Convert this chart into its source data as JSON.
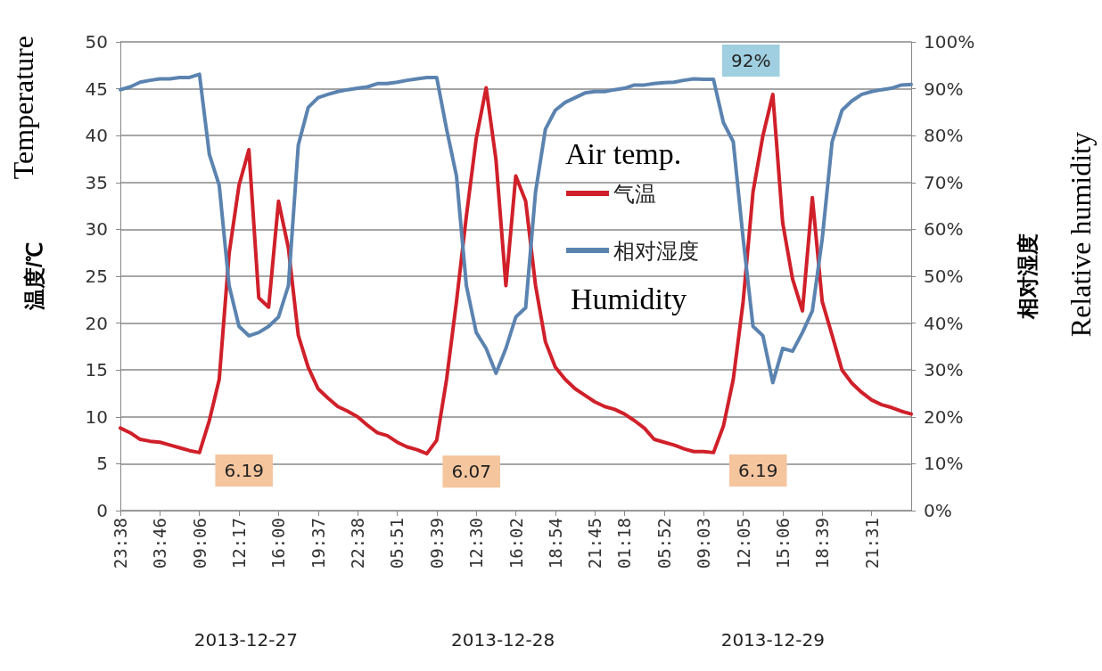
{
  "chart_data": {
    "type": "line",
    "ylabel": "温度/℃",
    "y2label": "相对湿度",
    "annotations": [
      "Temperature",
      "Relative humidity",
      "Air temp.",
      "Humidity",
      "2013-12-27",
      "2013-12-28",
      "2013-12-29"
    ],
    "categories": [
      "23:38",
      null,
      null,
      null,
      "03:46",
      null,
      null,
      null,
      "09:06",
      null,
      null,
      null,
      "12:17",
      null,
      null,
      null,
      "16:00",
      null,
      null,
      null,
      "19:37",
      null,
      null,
      null,
      "22:38",
      null,
      null,
      null,
      "05:51",
      null,
      null,
      null,
      "09:39",
      null,
      null,
      null,
      "12:30",
      null,
      null,
      null,
      "16:02",
      null,
      null,
      null,
      "18:54",
      null,
      null,
      null,
      "21:45",
      null,
      null,
      "01:18",
      null,
      null,
      null,
      "05:52",
      null,
      null,
      null,
      "09:03",
      null,
      null,
      null,
      "12:05",
      null,
      null,
      null,
      "15:06",
      null,
      null,
      null,
      "18:39",
      null,
      null,
      null,
      null,
      "21:31",
      null,
      null,
      null,
      null
    ],
    "series": [
      {
        "name": "气温",
        "color": "#d0202a",
        "values": [
          8.8,
          8.3,
          7.6,
          7.4,
          7.3,
          7.0,
          6.7,
          6.4,
          6.19,
          9.6,
          14.0,
          27.4,
          34.7,
          38.5,
          22.7,
          21.7,
          33,
          28,
          18.7,
          15.3,
          13,
          12,
          11.1,
          10.6,
          10,
          9.1,
          8.3,
          8.0,
          7.3,
          6.8,
          6.5,
          6.07,
          7.5,
          14,
          22.3,
          31.4,
          39.7,
          45.1,
          37.4,
          24,
          35.7,
          33,
          24,
          18,
          15.3,
          14,
          13,
          12.3,
          11.6,
          11.1,
          10.8,
          10.3,
          9.6,
          8.8,
          7.6,
          7.3,
          7.0,
          6.6,
          6.3,
          6.3,
          6.19,
          9,
          14,
          22.3,
          34,
          40,
          44.4,
          30.7,
          24.7,
          21.3,
          33.4,
          22.3,
          18.7,
          15,
          13.6,
          12.6,
          11.8,
          11.3,
          11,
          10.6,
          10.3
        ],
        "value_labels": [
          null,
          null,
          null,
          null,
          null,
          null,
          null,
          null,
          "6.19",
          null,
          null,
          null,
          null,
          null,
          null,
          null,
          null,
          null,
          null,
          null,
          null,
          null,
          null,
          null,
          null,
          null,
          null,
          null,
          null,
          null,
          null,
          "6.07",
          null,
          null,
          null,
          null,
          null,
          null,
          null,
          null,
          null,
          null,
          null,
          null,
          null,
          null,
          null,
          null,
          null,
          null,
          null,
          null,
          null,
          null,
          null,
          null,
          null,
          null,
          null,
          null,
          "6.19",
          null,
          null,
          null,
          null,
          null,
          null,
          null,
          null,
          null,
          null,
          null,
          null,
          null,
          null,
          null,
          null,
          null,
          null,
          null,
          null
        ]
      },
      {
        "name": "相对湿度",
        "color": "#5b83b0",
        "axis": "y2",
        "values": [
          89.8,
          90.4,
          91.4,
          91.8,
          92.1,
          92.1,
          92.4,
          92.4,
          93.1,
          76,
          69.4,
          48,
          39.3,
          37.3,
          38,
          39.3,
          41.3,
          48,
          78,
          86,
          88.1,
          88.8,
          89.4,
          89.8,
          90.1,
          90.4,
          91.1,
          91.1,
          91.4,
          91.8,
          92.1,
          92.4,
          92.4,
          81.4,
          71.4,
          48,
          38,
          34.6,
          29.3,
          34.6,
          41.3,
          43.3,
          68,
          81.4,
          85.4,
          87.1,
          88.1,
          89.1,
          89.4,
          89.4,
          89.8,
          90.1,
          90.8,
          90.8,
          91.1,
          91.3,
          91.4,
          91.8,
          92.1,
          92,
          92,
          82.8,
          78.7,
          58,
          39.3,
          37.3,
          27.3,
          34.6,
          34,
          38,
          42.6,
          58,
          78.7,
          85.4,
          87.4,
          88.8,
          89.4,
          89.8,
          90.1,
          90.8,
          90.9
        ],
        "value_labels": [
          null,
          null,
          null,
          null,
          null,
          null,
          null,
          null,
          null,
          null,
          null,
          null,
          null,
          null,
          null,
          null,
          null,
          null,
          null,
          null,
          null,
          null,
          null,
          null,
          null,
          null,
          null,
          null,
          null,
          null,
          null,
          null,
          null,
          null,
          null,
          null,
          null,
          null,
          null,
          null,
          null,
          null,
          null,
          null,
          null,
          null,
          null,
          null,
          null,
          null,
          null,
          null,
          null,
          null,
          null,
          null,
          null,
          null,
          null,
          null,
          "92%",
          null,
          null,
          null,
          null,
          null,
          null,
          null,
          null,
          null,
          null,
          null,
          null,
          null,
          null,
          null,
          null,
          null,
          null,
          null,
          null
        ]
      }
    ],
    "ylim": [
      0,
      50
    ],
    "yticks": [
      0,
      5,
      10,
      15,
      20,
      25,
      30,
      35,
      40,
      45,
      50
    ],
    "y2lim": [
      0,
      100
    ],
    "y2ticks": [
      {
        "value": 0,
        "label": "0%"
      },
      {
        "value": 10,
        "label": "10%"
      },
      {
        "value": 20,
        "label": "20%"
      },
      {
        "value": 30,
        "label": "30%"
      },
      {
        "value": 40,
        "label": "40%"
      },
      {
        "value": 50,
        "label": "50%"
      },
      {
        "value": 60,
        "label": "60%"
      },
      {
        "value": 70,
        "label": "70%"
      },
      {
        "value": 80,
        "label": "80%"
      },
      {
        "value": 90,
        "label": "90%"
      },
      {
        "value": 100,
        "label": "100%"
      }
    ],
    "grid": "y",
    "legend": "right"
  }
}
